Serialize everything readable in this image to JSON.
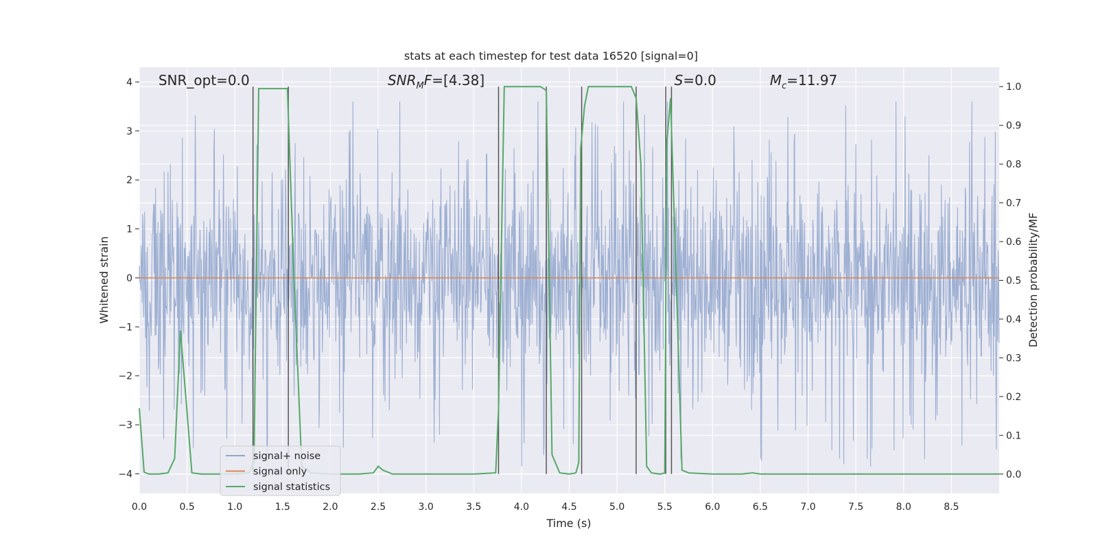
{
  "chart_data": {
    "type": "line",
    "title": "stats at each timestep for test data 16520 [signal=0]",
    "xlabel": "Time (s)",
    "ylabel": "Whitened strain",
    "y2label": "Detection probability/MF",
    "xlim": [
      0.0,
      9.0
    ],
    "ylim": [
      -4.4,
      4.3
    ],
    "y2lim": [
      -0.05,
      1.05
    ],
    "x_ticks": [
      0.0,
      0.5,
      1.0,
      1.5,
      2.0,
      2.5,
      3.0,
      3.5,
      4.0,
      4.5,
      5.0,
      5.5,
      6.0,
      6.5,
      7.0,
      7.5,
      8.0,
      8.5
    ],
    "x_tick_labels": [
      "0.0",
      "0.5",
      "1.0",
      "1.5",
      "2.0",
      "2.5",
      "3.0",
      "3.5",
      "4.0",
      "4.5",
      "5.0",
      "5.5",
      "6.0",
      "6.5",
      "7.0",
      "7.5",
      "8.0",
      "8.5"
    ],
    "y_ticks": [
      -4,
      -3,
      -2,
      -1,
      0,
      1,
      2,
      3,
      4
    ],
    "y_tick_labels": [
      "−4",
      "−3",
      "−2",
      "−1",
      "0",
      "1",
      "2",
      "3",
      "4"
    ],
    "y2_ticks": [
      0.0,
      0.1,
      0.2,
      0.3,
      0.4,
      0.5,
      0.6,
      0.7,
      0.8,
      0.9,
      1.0
    ],
    "y2_tick_labels": [
      "0.0",
      "0.1",
      "0.2",
      "0.3",
      "0.4",
      "0.5",
      "0.6",
      "0.7",
      "0.8",
      "0.9",
      "1.0"
    ],
    "grid": true,
    "legend_position": "lower-left",
    "legend": [
      {
        "label": "signal+ noise",
        "color": "#8fa5cc"
      },
      {
        "label": "signal only",
        "color": "#dd8452"
      },
      {
        "label": "signal statistics",
        "color": "#55a868"
      }
    ],
    "annotations": [
      {
        "text": "SNR_opt=0.0",
        "x": 0.2
      },
      {
        "text": "SNR",
        "sub": "M",
        "suffix": "F=[4.38]",
        "italic": true,
        "x": 2.6
      },
      {
        "text": "S",
        "suffix": "=0.0",
        "italic": true,
        "x": 5.6
      },
      {
        "text": "M",
        "sub": "c",
        "suffix": "=11.97",
        "italic": true,
        "x": 6.6
      }
    ],
    "series": [
      {
        "name": "signal+ noise",
        "style": "noise",
        "amplitude_typical": 1.6,
        "amplitude_peak": 3.9,
        "x_range": [
          0.0,
          9.0
        ]
      },
      {
        "name": "signal only",
        "values_constant": 0.0
      },
      {
        "name": "signal statistics",
        "axis": "right",
        "x": [
          0.0,
          0.05,
          0.1,
          0.2,
          0.3,
          0.37,
          0.43,
          0.49,
          0.55,
          0.65,
          0.8,
          1.0,
          1.15,
          1.2,
          1.25,
          1.3,
          1.4,
          1.55,
          1.62,
          1.7,
          1.8,
          2.0,
          2.3,
          2.45,
          2.5,
          2.55,
          2.65,
          2.8,
          3.0,
          3.5,
          3.73,
          3.76,
          3.82,
          3.9,
          4.0,
          4.2,
          4.26,
          4.32,
          4.4,
          4.5,
          4.57,
          4.6,
          4.62,
          4.66,
          4.7,
          4.8,
          5.0,
          5.15,
          5.2,
          5.25,
          5.31,
          5.36,
          5.45,
          5.5,
          5.52,
          5.56,
          5.62,
          5.68,
          5.75,
          6.0,
          6.3,
          6.42,
          6.5,
          6.7,
          7.0,
          8.0,
          9.0
        ],
        "values": [
          0.17,
          0.005,
          0.0,
          0.0,
          0.003,
          0.04,
          0.37,
          0.19,
          0.003,
          0.0,
          0.0,
          0.0,
          0.003,
          0.03,
          0.995,
          0.995,
          0.995,
          0.995,
          0.5,
          0.02,
          0.003,
          0.0,
          0.0,
          0.003,
          0.02,
          0.01,
          0.0,
          0.0,
          0.0,
          0.0,
          0.003,
          0.17,
          1.0,
          1.0,
          1.0,
          1.0,
          0.99,
          0.05,
          0.003,
          0.0,
          0.003,
          0.03,
          0.84,
          0.95,
          1.0,
          1.0,
          1.0,
          1.0,
          0.97,
          0.8,
          0.02,
          0.003,
          0.0,
          0.003,
          0.85,
          0.97,
          0.5,
          0.01,
          0.003,
          0.0,
          0.0,
          0.003,
          0.0,
          0.0,
          0.0,
          0.0,
          0.0
        ]
      }
    ],
    "vertical_lines": [
      1.19,
      1.56,
      3.76,
      4.26,
      4.63,
      5.2,
      5.51,
      5.57
    ],
    "vertical_line_color": "#555555"
  }
}
